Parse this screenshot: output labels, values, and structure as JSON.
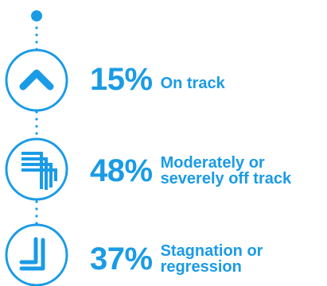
{
  "accent_color": "#1a9be6",
  "stats": [
    {
      "percent": "15%",
      "label": "On track",
      "icon": "chevron-up-icon"
    },
    {
      "percent": "48%",
      "label_line1": "Moderately or",
      "label_line2": "severely off track",
      "icon": "right-angle-arrows-icon"
    },
    {
      "percent": "37%",
      "label_line1": "Stagnation or",
      "label_line2": "regression",
      "icon": "down-left-angle-icon"
    }
  ]
}
